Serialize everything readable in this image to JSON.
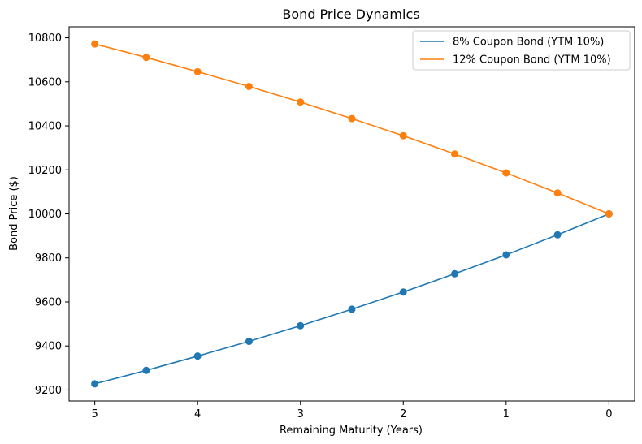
{
  "chart_data": {
    "type": "line",
    "title": "Bond Price Dynamics",
    "xlabel": "Remaining Maturity (Years)",
    "ylabel": "Bond Price ($)",
    "x": [
      5,
      4.5,
      4,
      3.5,
      3,
      2.5,
      2,
      1.5,
      1,
      0.5,
      0
    ],
    "x_reversed": true,
    "xlim": [
      5.25,
      -0.25
    ],
    "ylim": [
      9150,
      10850
    ],
    "x_ticks": [
      5,
      4,
      3,
      2,
      1,
      0
    ],
    "y_ticks": [
      9200,
      9400,
      9600,
      9800,
      10000,
      10200,
      10400,
      10600,
      10800
    ],
    "grid": false,
    "legend_position": "top-right",
    "markers": true,
    "series": [
      {
        "name": "8% Coupon Bond (YTM 10%)",
        "color": "#1f77b4",
        "values": [
          9228,
          9289,
          9354,
          9421,
          9492,
          9567,
          9645,
          9728,
          9814,
          9905,
          10000
        ]
      },
      {
        "name": "12% Coupon Bond (YTM 10%)",
        "color": "#ff7f0e",
        "values": [
          10772,
          10711,
          10646,
          10579,
          10508,
          10433,
          10355,
          10272,
          10186,
          10095,
          10000
        ]
      }
    ]
  }
}
